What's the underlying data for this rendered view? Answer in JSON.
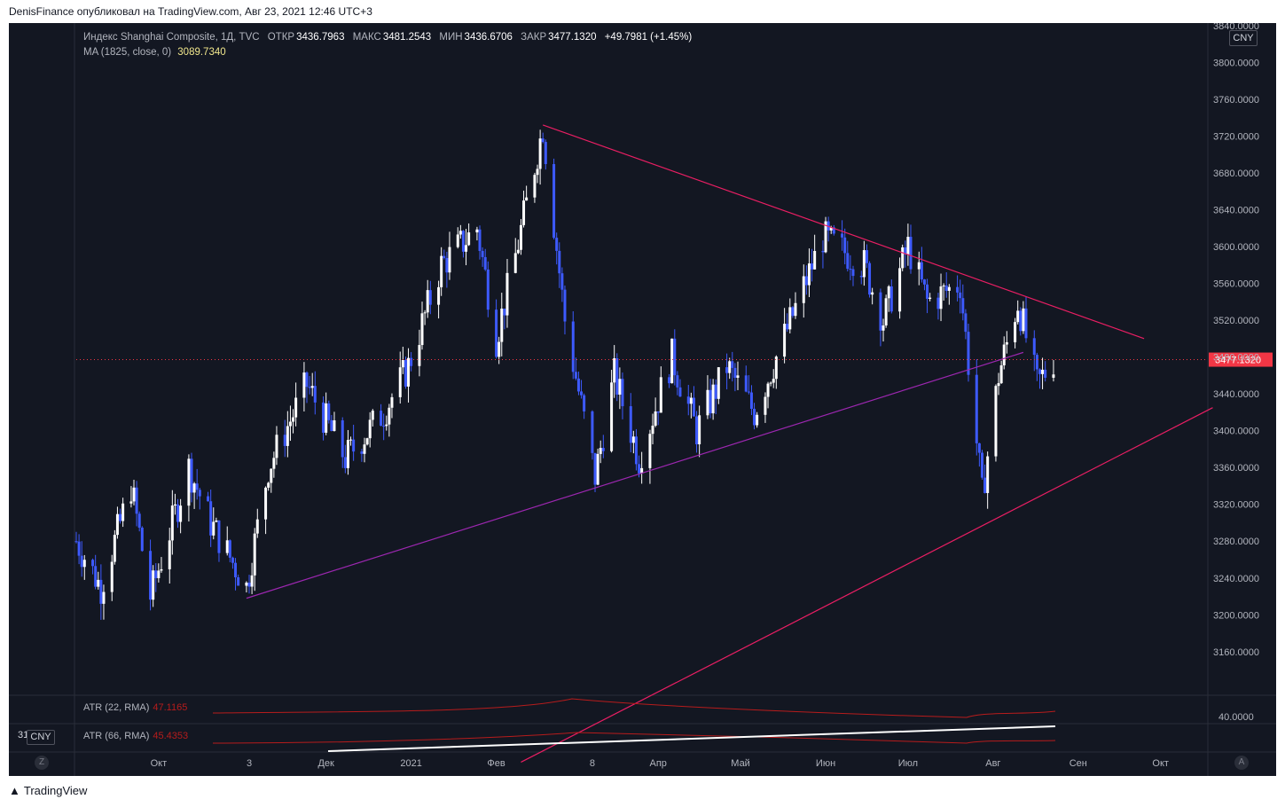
{
  "header": {
    "text": "DenisFinance опубликовал на TradingView.com, Авг 23, 2021 12:46 UTC+3"
  },
  "legend": {
    "symbol": "Индекс Shanghai Composite, 1Д, TVC",
    "open_label": "ОТКР",
    "open": "3436.7963",
    "high_label": "МАКС",
    "high": "3481.2543",
    "low_label": "МИН",
    "low": "3436.6706",
    "close_label": "ЗАКР",
    "close": "3477.1320",
    "change": "+49.7981 (+1.45%)",
    "ma_label": "MA (1825, close, 0)",
    "ma_value": "3089.7340"
  },
  "currency": "CNY",
  "price_axis": {
    "ticks": [
      "3840.0000",
      "3800.0000",
      "3760.0000",
      "3720.0000",
      "3680.0000",
      "3640.0000",
      "3600.0000",
      "3560.0000",
      "3520.0000",
      "3480.0000",
      "3440.0000",
      "3400.0000",
      "3360.0000",
      "3320.0000",
      "3280.0000",
      "3240.0000",
      "3200.0000",
      "3160.0000"
    ],
    "last_price": "3477.1320",
    "atr_tick": "40.0000"
  },
  "time_axis": {
    "labels": [
      "Окт",
      "3",
      "Дек",
      "2021",
      "Фев",
      "8",
      "Апр",
      "Май",
      "Июн",
      "Июл",
      "Авг",
      "Сен",
      "Окт"
    ]
  },
  "indicators": {
    "atr22_label": "ATR (22, RMA)",
    "atr22_value": "47.1165",
    "atr66_label": "ATR (66, RMA)",
    "atr66_value": "45.4353",
    "left_value": "31"
  },
  "buttons": {
    "z": "Z",
    "a": "A"
  },
  "footer": {
    "brand": "TradingView"
  },
  "colors": {
    "background": "#131722",
    "bull": "#ffffff",
    "bear": "#3d5afe",
    "trendline": "#e91e63",
    "support": "#9c27b0",
    "price_label": "#f23645",
    "atr": "#b71c1c"
  },
  "chart_data": {
    "type": "candlestick",
    "title": "Индекс Shanghai Composite, 1Д, TVC",
    "ylim": [
      3130,
      3860
    ],
    "x_tick_labels": [
      "Окт",
      "3",
      "Дек",
      "2021",
      "Фев",
      "8",
      "Апр",
      "Май",
      "Июн",
      "Июл",
      "Авг",
      "Сен",
      "Окт"
    ],
    "last_close": 3477.132,
    "series": [
      {
        "name": "price",
        "pivots": [
          [
            "2020-09-01",
            3280
          ],
          [
            "2020-09-10",
            3230
          ],
          [
            "2020-09-21",
            3340
          ],
          [
            "2020-09-28",
            3220
          ],
          [
            "2020-10-12",
            3360
          ],
          [
            "2020-10-20",
            3300
          ],
          [
            "2020-11-02",
            3230
          ],
          [
            "2020-11-10",
            3360
          ],
          [
            "2020-11-24",
            3450
          ],
          [
            "2020-12-08",
            3370
          ],
          [
            "2020-12-22",
            3420
          ],
          [
            "2020-12-31",
            3470
          ],
          [
            "2021-01-12",
            3580
          ],
          [
            "2021-01-25",
            3620
          ],
          [
            "2021-02-01",
            3500
          ],
          [
            "2021-02-08",
            3590
          ],
          [
            "2021-02-18",
            3730
          ],
          [
            "2021-02-26",
            3520
          ],
          [
            "2021-03-09",
            3350
          ],
          [
            "2021-03-16",
            3460
          ],
          [
            "2021-03-25",
            3370
          ],
          [
            "2021-04-06",
            3480
          ],
          [
            "2021-04-15",
            3400
          ],
          [
            "2021-04-26",
            3470
          ],
          [
            "2021-05-06",
            3420
          ],
          [
            "2021-05-18",
            3510
          ],
          [
            "2021-05-31",
            3610
          ],
          [
            "2021-06-15",
            3580
          ],
          [
            "2021-06-22",
            3520
          ],
          [
            "2021-07-01",
            3600
          ],
          [
            "2021-07-08",
            3540
          ],
          [
            "2021-07-20",
            3560
          ],
          [
            "2021-07-28",
            3330
          ],
          [
            "2021-08-03",
            3460
          ],
          [
            "2021-08-10",
            3540
          ],
          [
            "2021-08-17",
            3450
          ],
          [
            "2021-08-23",
            3477
          ]
        ]
      }
    ]
  }
}
